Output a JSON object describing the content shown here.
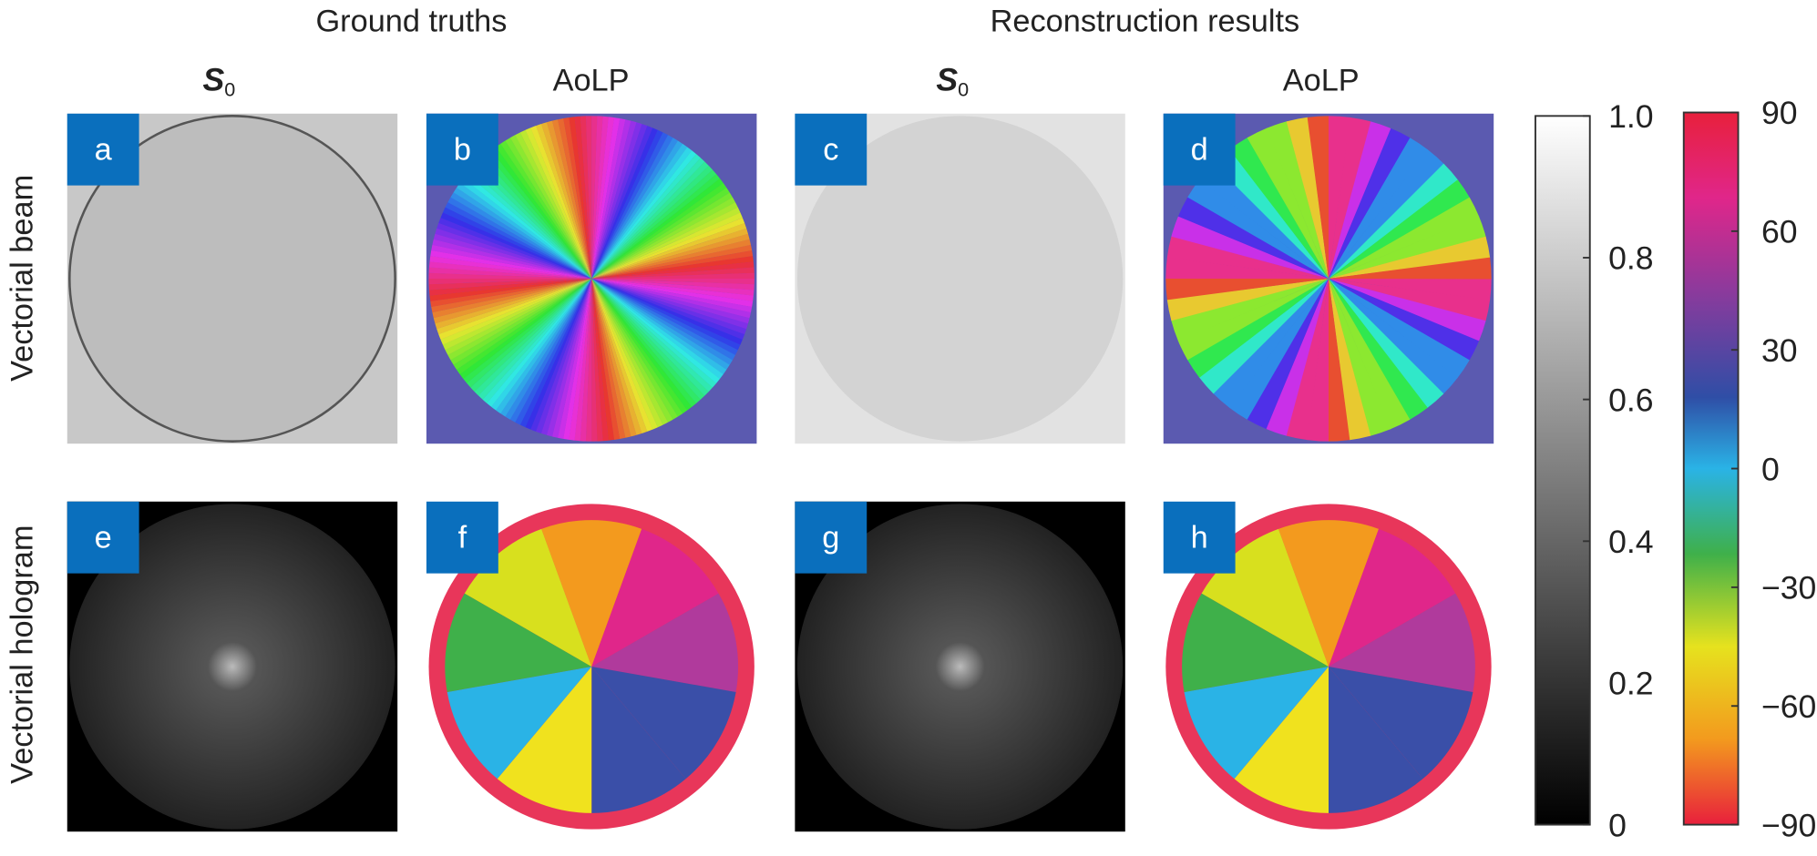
{
  "header": {
    "left_title": "Ground truths",
    "right_title": "Reconstruction results"
  },
  "columns": [
    {
      "symbol": "S",
      "subscript": "0"
    },
    {
      "label": "AoLP"
    },
    {
      "symbol": "S",
      "subscript": "0"
    },
    {
      "label": "AoLP"
    }
  ],
  "rows": [
    "Vectorial beam",
    "Vectorial hologram"
  ],
  "panels": [
    "a",
    "b",
    "c",
    "d",
    "e",
    "f",
    "g",
    "h"
  ],
  "colorbars": [
    {
      "ticks": [
        {
          "value": 1,
          "label": "1.0"
        },
        0.8,
        0.6,
        0.4,
        0.2,
        0
      ]
    },
    {
      "ticks": [
        90,
        60,
        30,
        0,
        {
          "value": -30,
          "label": "−30"
        },
        {
          "value": -60,
          "label": "−60"
        },
        {
          "value": -90,
          "label": "−90"
        }
      ]
    }
  ]
}
